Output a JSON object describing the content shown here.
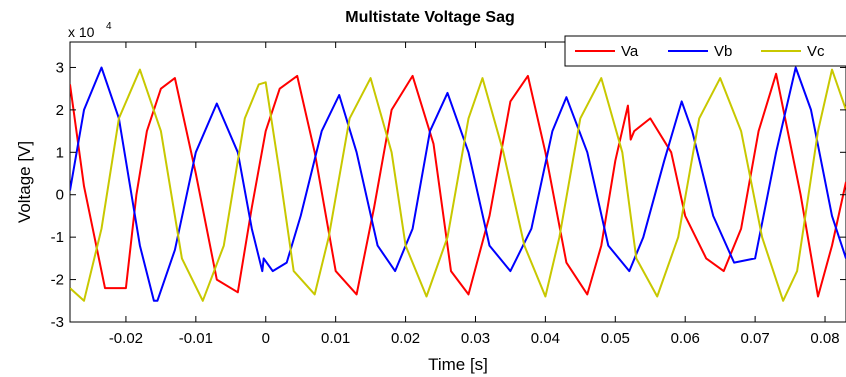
{
  "chart_data": {
    "type": "line",
    "title": "Multistate Voltage Sag",
    "xlabel": "Time [s]",
    "ylabel": "Voltage [V]",
    "y_exponent_base": "x 10",
    "y_exponent_power": "4",
    "xlim": [
      -0.028,
      0.083
    ],
    "ylim": [
      -3,
      3.6
    ],
    "x_ticks": [
      -0.02,
      -0.01,
      0,
      0.01,
      0.02,
      0.03,
      0.04,
      0.05,
      0.06,
      0.07,
      0.08
    ],
    "x_tick_labels": [
      "-0.02",
      "-0.01",
      "0",
      "0.01",
      "0.02",
      "0.03",
      "0.04",
      "0.05",
      "0.06",
      "0.07",
      "0.08"
    ],
    "y_ticks": [
      -3,
      -2,
      -1,
      0,
      1,
      2,
      3
    ],
    "y_tick_labels": [
      "-3",
      "-2",
      "-1",
      "0",
      "1",
      "2",
      "3"
    ],
    "legend_position": "top-right",
    "series": [
      {
        "name": "Va",
        "color": "#ff0000",
        "x": [
          -0.028,
          -0.026,
          -0.023,
          -0.02,
          -0.0185,
          -0.017,
          -0.015,
          -0.013,
          -0.01,
          -0.007,
          -0.004,
          -0.002,
          0.0,
          0.002,
          0.0045,
          0.007,
          0.01,
          0.013,
          0.0155,
          0.018,
          0.021,
          0.024,
          0.0265,
          0.029,
          0.032,
          0.035,
          0.0375,
          0.04,
          0.043,
          0.046,
          0.048,
          0.05,
          0.0518,
          0.0522,
          0.0527,
          0.055,
          0.058,
          0.06,
          0.063,
          0.0655,
          0.068,
          0.0705,
          0.073,
          0.0765,
          0.079,
          0.081,
          0.083
        ],
        "y": [
          2.6,
          0.2,
          -2.2,
          -2.2,
          0.0,
          1.5,
          2.5,
          2.75,
          0.5,
          -2.0,
          -2.3,
          -0.3,
          1.5,
          2.5,
          2.8,
          1.0,
          -1.8,
          -2.35,
          -0.3,
          2.0,
          2.8,
          1.2,
          -1.8,
          -2.35,
          -0.5,
          2.2,
          2.8,
          1.0,
          -1.6,
          -2.35,
          -1.2,
          0.8,
          2.1,
          1.3,
          1.5,
          1.8,
          1.0,
          -0.5,
          -1.5,
          -1.8,
          -0.8,
          1.5,
          2.85,
          0.0,
          -2.4,
          -1.2,
          0.3
        ]
      },
      {
        "name": "Vb",
        "color": "#0000ff",
        "x": [
          -0.028,
          -0.026,
          -0.0235,
          -0.021,
          -0.018,
          -0.016,
          -0.0155,
          -0.013,
          -0.01,
          -0.007,
          -0.004,
          -0.002,
          -0.0005,
          -0.0003,
          0.001,
          0.003,
          0.005,
          0.008,
          0.0105,
          0.013,
          0.016,
          0.0185,
          0.021,
          0.0235,
          0.026,
          0.029,
          0.032,
          0.035,
          0.038,
          0.041,
          0.043,
          0.046,
          0.049,
          0.052,
          0.054,
          0.057,
          0.0595,
          0.061,
          0.064,
          0.067,
          0.07,
          0.073,
          0.0758,
          0.078,
          0.081,
          0.083
        ],
        "y": [
          0.1,
          2.0,
          3.0,
          1.8,
          -1.2,
          -2.5,
          -2.5,
          -1.3,
          1.0,
          2.15,
          1.0,
          -0.8,
          -1.8,
          -1.5,
          -1.8,
          -1.6,
          -0.5,
          1.5,
          2.35,
          1.0,
          -1.2,
          -1.8,
          -0.8,
          1.5,
          2.4,
          1.0,
          -1.2,
          -1.8,
          -0.8,
          1.5,
          2.3,
          1.0,
          -1.2,
          -1.8,
          -1.0,
          0.8,
          2.2,
          1.5,
          -0.5,
          -1.6,
          -1.5,
          1.0,
          3.0,
          2.0,
          -0.5,
          -1.5
        ]
      },
      {
        "name": "Vc",
        "color": "#c8c800",
        "x": [
          -0.028,
          -0.026,
          -0.0235,
          -0.021,
          -0.018,
          -0.015,
          -0.012,
          -0.009,
          -0.006,
          -0.003,
          -0.001,
          0.0,
          0.002,
          0.004,
          0.007,
          0.009,
          0.012,
          0.015,
          0.018,
          0.02,
          0.023,
          0.026,
          0.029,
          0.031,
          0.034,
          0.037,
          0.04,
          0.042,
          0.045,
          0.048,
          0.051,
          0.053,
          0.056,
          0.059,
          0.062,
          0.065,
          0.068,
          0.071,
          0.074,
          0.076,
          0.079,
          0.081,
          0.083
        ],
        "y": [
          -2.2,
          -2.5,
          -0.8,
          1.8,
          2.95,
          1.5,
          -1.5,
          -2.5,
          -1.2,
          1.8,
          2.6,
          2.65,
          0.5,
          -1.8,
          -2.35,
          -1.0,
          1.8,
          2.75,
          1.0,
          -1.2,
          -2.4,
          -1.0,
          1.8,
          2.75,
          1.0,
          -1.2,
          -2.4,
          -1.0,
          1.8,
          2.75,
          1.0,
          -1.5,
          -2.4,
          -1.0,
          1.8,
          2.75,
          1.5,
          -1.0,
          -2.5,
          -1.8,
          1.5,
          2.95,
          2.0
        ]
      }
    ]
  }
}
